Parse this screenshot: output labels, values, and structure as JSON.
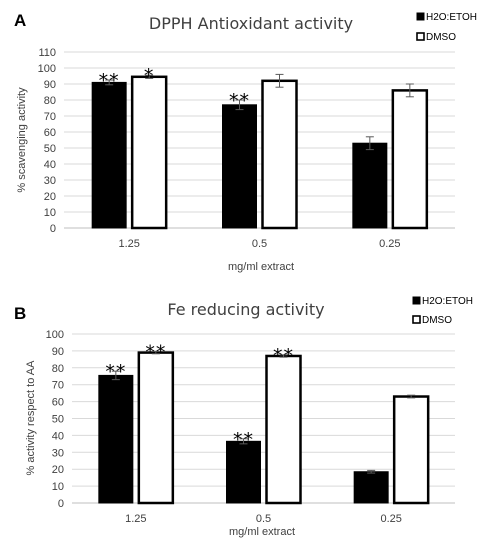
{
  "chart_data": [
    {
      "type": "bar",
      "panel": "A",
      "title": "DPPH Antioxidant activity",
      "xlabel": "mg/ml extract",
      "ylabel": "% scavenging  activity",
      "ylim": [
        0,
        110
      ],
      "yticks": [
        0,
        10,
        20,
        30,
        40,
        50,
        60,
        70,
        80,
        90,
        100,
        110
      ],
      "categories": [
        "1.25",
        "0.5",
        "0.25"
      ],
      "legend_position": "top-right",
      "series": [
        {
          "name": "H2O:ETOH",
          "color": "#000000",
          "values": [
            91,
            77,
            53
          ],
          "errors": [
            1.5,
            3,
            4
          ],
          "annotations": [
            "**",
            "**",
            ""
          ]
        },
        {
          "name": "DMSO",
          "color": "#ffffff",
          "values": [
            94.5,
            92,
            86
          ],
          "errors": [
            1,
            4,
            4
          ],
          "annotations": [
            "*",
            "",
            ""
          ]
        }
      ]
    },
    {
      "type": "bar",
      "panel": "B",
      "title": "Fe reducing activity",
      "xlabel": "mg/ml extract",
      "ylabel": "% activity respect to AA",
      "ylim": [
        0,
        100
      ],
      "yticks": [
        0,
        10,
        20,
        30,
        40,
        50,
        60,
        70,
        80,
        90,
        100
      ],
      "categories": [
        "1.25",
        "0.5",
        "0.25"
      ],
      "legend_position": "top-right",
      "series": [
        {
          "name": "H2O:ETOH",
          "color": "#000000",
          "values": [
            75.5,
            36.5,
            18.5
          ],
          "errors": [
            2.5,
            1.5,
            0.8
          ],
          "annotations": [
            "**",
            "**",
            ""
          ]
        },
        {
          "name": "DMSO",
          "color": "#ffffff",
          "values": [
            89,
            87,
            63
          ],
          "errors": [
            0.7,
            0.7,
            0.8
          ],
          "annotations": [
            "**",
            "**",
            ""
          ]
        }
      ]
    }
  ]
}
